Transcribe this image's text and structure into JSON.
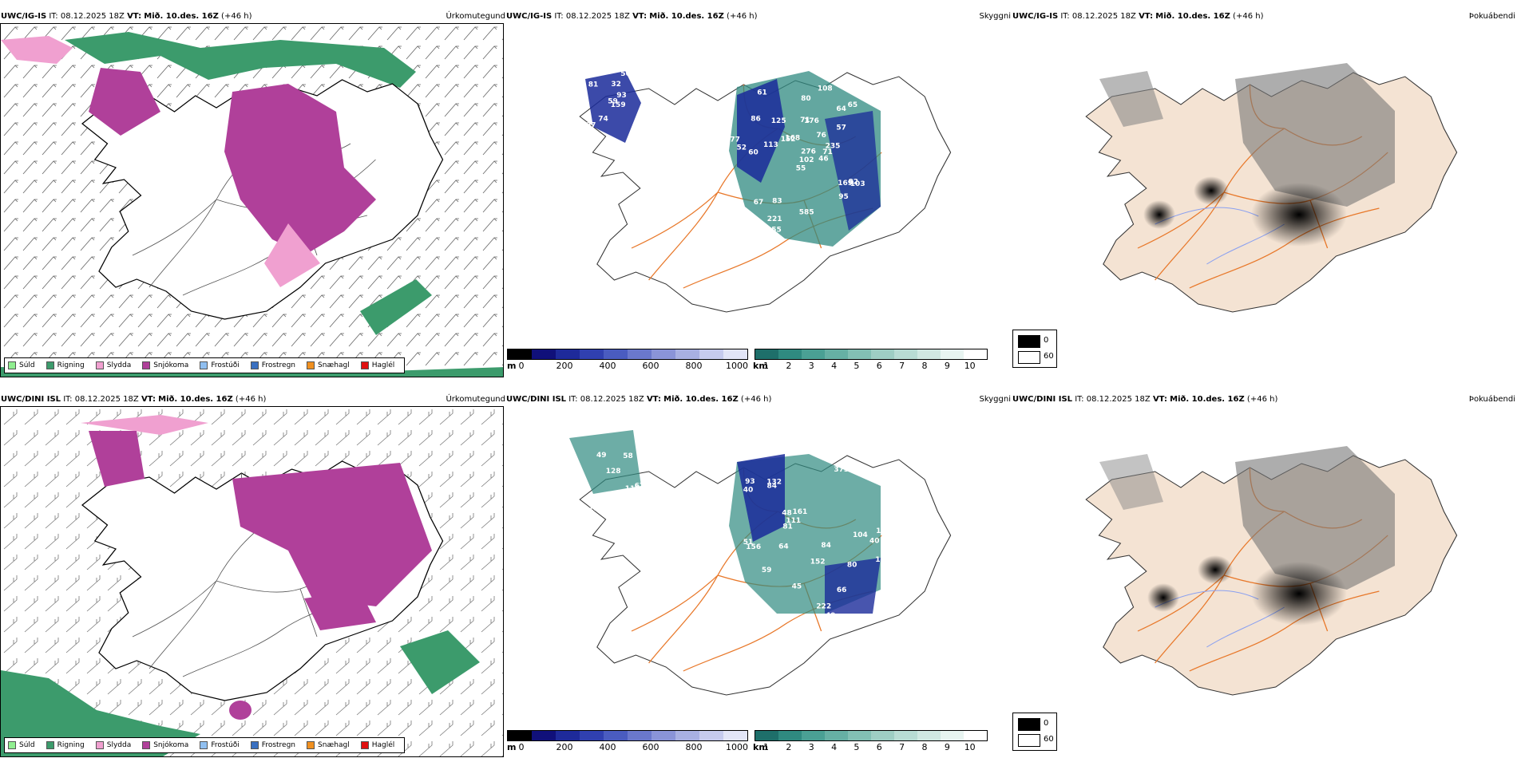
{
  "rows": [
    {
      "model": "UWC/IG-IS",
      "it_label": "IT:",
      "it_value": "08.12.2025 18Z",
      "vt_label": "VT:",
      "vt_value": "Mið. 10.des. 16Z",
      "lead": "(+46 h)",
      "precip_title": "Úrkomutegund",
      "cloud_title": "Skyggni",
      "sun_title": "Þokuábendi",
      "height_labels": [
        "159",
        "81",
        "59",
        "97",
        "93",
        "74",
        "56",
        "32",
        "64",
        "46",
        "61",
        "40",
        "60",
        "58",
        "55",
        "57",
        "51",
        "71",
        "76",
        "67",
        "168",
        "223",
        "221",
        "176",
        "235",
        "103",
        "86",
        "80",
        "52",
        "169",
        "105",
        "102",
        "585",
        "276",
        "125",
        "65",
        "83",
        "159",
        "72",
        "82",
        "108",
        "152",
        "113",
        "95",
        "55",
        "77",
        "71"
      ]
    },
    {
      "model": "UWC/DINI ISL",
      "it_label": "IT:",
      "it_value": "08.12.2025 18Z",
      "vt_label": "VT:",
      "vt_value": "Mið. 10.des. 16Z",
      "lead": "(+46 h)",
      "precip_title": "Úrkomutegund",
      "cloud_title": "Skyggni",
      "sun_title": "Þokuábendi",
      "height_labels": [
        "116",
        "67",
        "112",
        "49",
        "128",
        "56",
        "98",
        "58",
        "48",
        "49",
        "40",
        "51",
        "93",
        "109",
        "45",
        "159",
        "152",
        "84",
        "161",
        "59",
        "103",
        "115",
        "81",
        "111",
        "373",
        "132",
        "80",
        "156",
        "84",
        "104",
        "222",
        "66",
        "111",
        "64",
        "40"
      ]
    }
  ],
  "precip_legend": [
    {
      "label": "Súld",
      "color": "#90ee90"
    },
    {
      "label": "Rigning",
      "color": "#3c9b6c"
    },
    {
      "label": "Slydda",
      "color": "#f0a0d0"
    },
    {
      "label": "Snjókoma",
      "color": "#b0409a"
    },
    {
      "label": "Frostúði",
      "color": "#90bff0"
    },
    {
      "label": "Frostregn",
      "color": "#3a70c0"
    },
    {
      "label": "Snæhagl",
      "color": "#f09020"
    },
    {
      "label": "Haglél",
      "color": "#e01010"
    }
  ],
  "height_bar": {
    "unit": "m",
    "ticks": [
      "0",
      "200",
      "400",
      "600",
      "800",
      "1000"
    ],
    "colors": [
      "#000000",
      "#10107a",
      "#1e2a9a",
      "#3040b0",
      "#4a5cc0",
      "#6a78cc",
      "#8a94d8",
      "#a8b0e2",
      "#c6cbee",
      "#e2e5f7"
    ]
  },
  "visibility_bar": {
    "unit": "km",
    "ticks": [
      "1",
      "2",
      "3",
      "4",
      "5",
      "6",
      "7",
      "8",
      "9",
      "10"
    ],
    "colors": [
      "#1e6f6a",
      "#2f8a80",
      "#4aa094",
      "#66b0a4",
      "#82c0b4",
      "#9ecec4",
      "#b8dcd4",
      "#d0e8e2",
      "#e8f4f1",
      "#ffffff"
    ]
  },
  "sun_legend": {
    "values": [
      "0",
      "60"
    ]
  },
  "colors": {
    "land": "#f4e3d3",
    "road": "#e8782a",
    "river": "#8aa0f0",
    "snow": "#b0409a",
    "rain": "#3c9b6c",
    "navy": "#1a2a9a"
  }
}
